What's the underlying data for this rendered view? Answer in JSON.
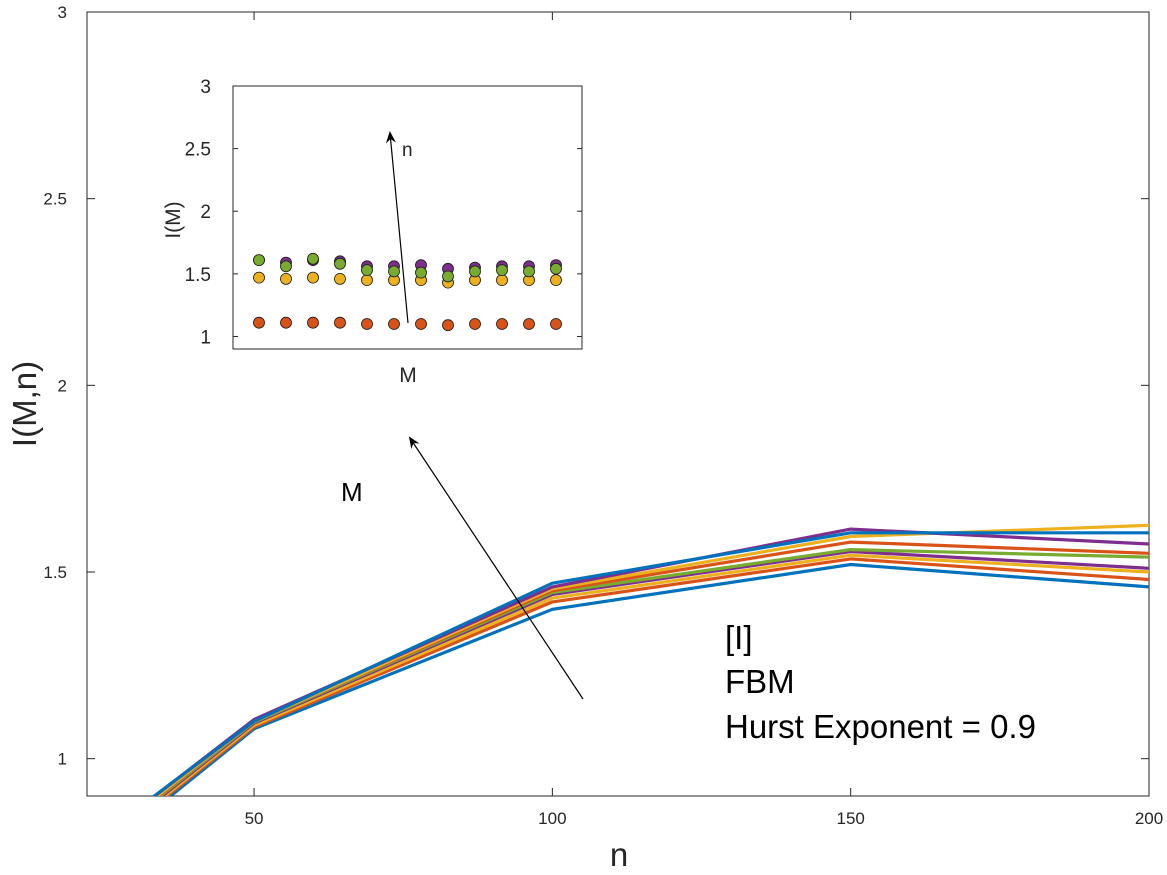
{
  "chart_data": [
    {
      "type": "line",
      "xlabel": "n",
      "ylabel": "I(M,n)",
      "xlim": [
        22,
        200
      ],
      "ylim": [
        0.9,
        3
      ],
      "xticks": [
        50,
        100,
        150,
        200
      ],
      "yticks": [
        1,
        1.5,
        2,
        2.5,
        3
      ],
      "x": [
        22,
        50,
        100,
        150,
        200
      ],
      "colors": [
        "#0072BD",
        "#D95319",
        "#EDB120",
        "#7E2F8E",
        "#77AC30"
      ],
      "series": [
        {
          "color": "#0072BD",
          "values": [
            0.72,
            1.08,
            1.4,
            1.52,
            1.46
          ]
        },
        {
          "color": "#D95319",
          "values": [
            0.73,
            1.085,
            1.42,
            1.535,
            1.48
          ]
        },
        {
          "color": "#EDB120",
          "values": [
            0.735,
            1.09,
            1.43,
            1.545,
            1.5
          ]
        },
        {
          "color": "#7E2F8E",
          "values": [
            0.74,
            1.095,
            1.44,
            1.555,
            1.51
          ]
        },
        {
          "color": "#77AC30",
          "values": [
            0.745,
            1.098,
            1.445,
            1.56,
            1.54
          ]
        },
        {
          "color": "#D95319",
          "values": [
            0.75,
            1.1,
            1.45,
            1.58,
            1.55
          ]
        },
        {
          "color": "#EDB120",
          "values": [
            0.755,
            1.1,
            1.455,
            1.595,
            1.625
          ]
        },
        {
          "color": "#7E2F8E",
          "values": [
            0.76,
            1.105,
            1.46,
            1.615,
            1.575
          ]
        },
        {
          "color": "#0072BD",
          "values": [
            0.765,
            1.1,
            1.47,
            1.605,
            1.605
          ]
        }
      ],
      "arrow_label": "M",
      "text_lines": [
        "[I]",
        "FBM",
        "Hurst Exponent = 0.9"
      ]
    },
    {
      "type": "scatter",
      "xlabel": "M",
      "ylabel": "I(M)",
      "ylim": [
        0.9,
        3
      ],
      "yticks": [
        1,
        1.5,
        2,
        2.5,
        3
      ],
      "x": [
        1,
        2,
        3,
        4,
        5,
        6,
        7,
        8,
        9,
        10,
        11,
        12
      ],
      "series": [
        {
          "color": "#D95319",
          "values": [
            1.11,
            1.11,
            1.11,
            1.11,
            1.1,
            1.1,
            1.1,
            1.09,
            1.1,
            1.1,
            1.1,
            1.1
          ]
        },
        {
          "color": "#EDB120",
          "values": [
            1.47,
            1.46,
            1.47,
            1.46,
            1.45,
            1.45,
            1.45,
            1.43,
            1.45,
            1.45,
            1.45,
            1.45
          ]
        },
        {
          "color": "#7E2F8E",
          "values": [
            1.61,
            1.59,
            1.61,
            1.6,
            1.56,
            1.56,
            1.57,
            1.54,
            1.55,
            1.56,
            1.56,
            1.57
          ]
        },
        {
          "color": "#77AC30",
          "values": [
            1.61,
            1.56,
            1.62,
            1.58,
            1.53,
            1.52,
            1.51,
            1.48,
            1.52,
            1.53,
            1.52,
            1.54
          ]
        }
      ],
      "arrow_label": "n"
    }
  ]
}
